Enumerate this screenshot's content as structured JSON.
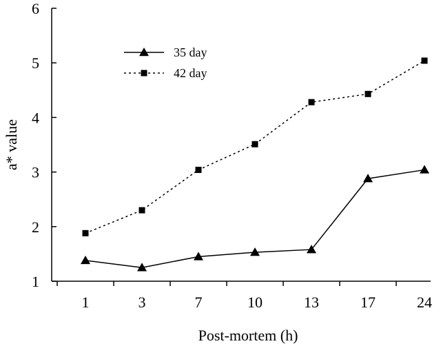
{
  "chart_data": {
    "type": "line",
    "title": "",
    "xlabel": "Post-mortem (h)",
    "ylabel": "a* value",
    "categories": [
      "1",
      "3",
      "7",
      "10",
      "13",
      "17",
      "24"
    ],
    "ylim": [
      1,
      6
    ],
    "yticks": [
      "1",
      "2",
      "3",
      "4",
      "5",
      "6"
    ],
    "grid": false,
    "legend_position": "top-left",
    "series": [
      {
        "name": "35 day",
        "marker": "triangle",
        "line_style": "solid",
        "values": [
          1.38,
          1.25,
          1.45,
          1.53,
          1.58,
          2.88,
          3.04
        ]
      },
      {
        "name": "42 day",
        "marker": "square",
        "line_style": "dotted",
        "values": [
          1.88,
          2.3,
          3.04,
          3.51,
          4.28,
          4.43,
          5.04
        ]
      }
    ]
  }
}
